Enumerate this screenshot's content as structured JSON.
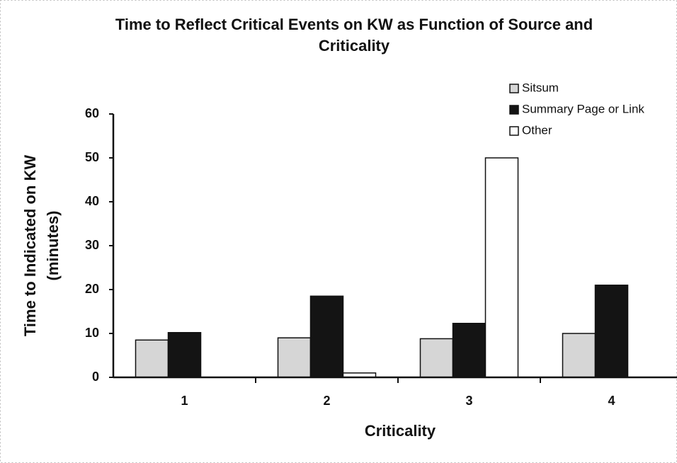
{
  "chart_data": {
    "type": "bar",
    "title": "Time to Reflect Critical Events on KW as Function of Source and Criticality",
    "x_label": "Criticality",
    "y_label": [
      "Time to Indicated on KW",
      "(minutes)"
    ],
    "categories": [
      "1",
      "2",
      "3",
      "4"
    ],
    "series": [
      {
        "name": "Sitsum",
        "color": "#d6d6d6",
        "values": [
          8.5,
          9,
          8.8,
          10
        ]
      },
      {
        "name": "Summary Page or Link",
        "color": "#141414",
        "values": [
          10.2,
          18.5,
          12.3,
          21
        ]
      },
      {
        "name": "Other",
        "color": "#ffffff",
        "values": [
          null,
          1,
          50,
          null
        ]
      }
    ],
    "ylim": [
      0,
      60
    ],
    "yticks": [
      0,
      10,
      20,
      30,
      40,
      50,
      60
    ],
    "legend": "top-right"
  }
}
